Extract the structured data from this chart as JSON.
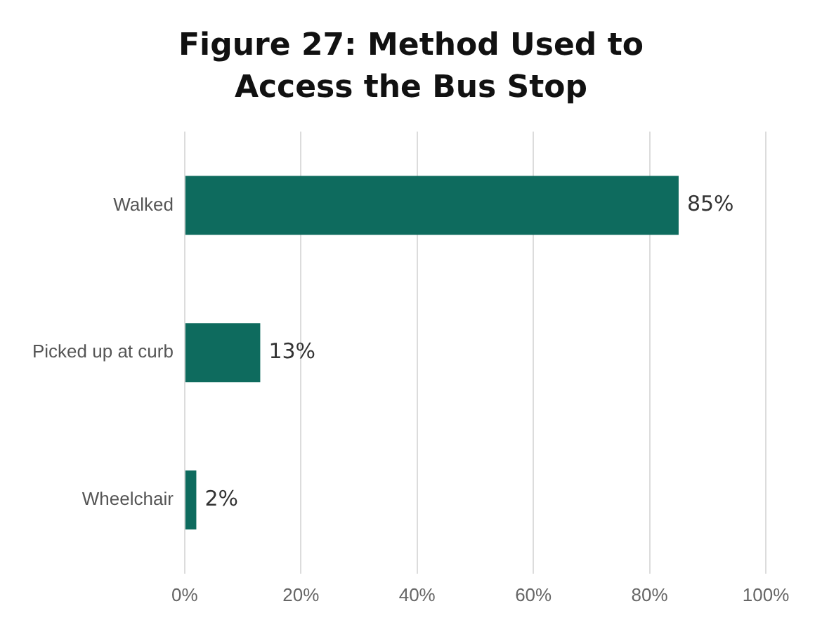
{
  "chart_data": {
    "type": "bar",
    "orientation": "horizontal",
    "title": "Figure 27: Method Used to Access the Bus Stop",
    "categories": [
      "Walked",
      "Picked up at curb",
      "Wheelchair"
    ],
    "values": [
      85,
      13,
      2
    ],
    "color": "#0e6b5e",
    "value_labels": [
      "85%",
      "13%",
      "2%"
    ],
    "xlim": [
      0,
      100
    ],
    "xticks": [
      {
        "value": 0,
        "label": "0%"
      },
      {
        "value": 20,
        "label": "20%"
      },
      {
        "value": 40,
        "label": "40%"
      },
      {
        "value": 60,
        "label": "60%"
      },
      {
        "value": 80,
        "label": "80%"
      },
      {
        "value": 100,
        "label": "100%"
      }
    ],
    "grid": "x",
    "legend": false
  }
}
